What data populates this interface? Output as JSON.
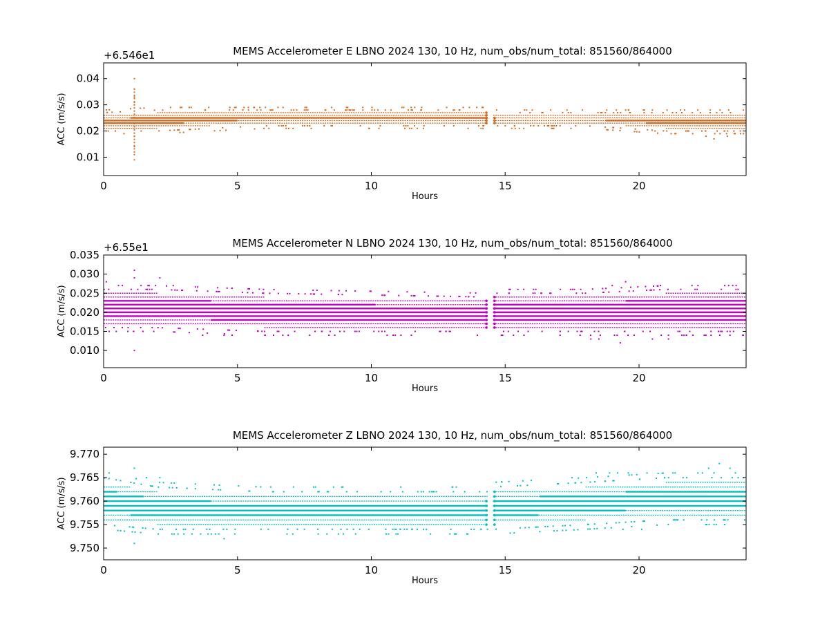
{
  "chart_data": [
    {
      "type": "scatter",
      "title": "MEMS Accelerometer E LBNO 2024 130, 10 Hz, num_obs/num_total: 851560/864000",
      "xlabel": "Hours",
      "ylabel": "ACC (m/s/s)",
      "offset_label": "+6.546e1",
      "color": "#d2691e",
      "xlim": [
        0,
        24
      ],
      "ylim": [
        0.003,
        0.046
      ],
      "xticks": [
        "0",
        "5",
        "10",
        "15",
        "20"
      ],
      "yticks": [
        "0.01",
        "0.02",
        "0.03",
        "0.04"
      ],
      "gaps": [
        [
          14.35,
          14.55
        ]
      ],
      "band": {
        "hours": [
          0,
          2,
          6,
          14.35,
          14.55,
          18,
          21,
          24
        ],
        "lower": [
          0.021,
          0.021,
          0.023,
          0.023,
          0.023,
          0.023,
          0.021,
          0.021
        ],
        "upper": [
          0.026,
          0.027,
          0.027,
          0.027,
          0.026,
          0.026,
          0.026,
          0.026
        ]
      },
      "outliers": [
        [
          1.15,
          0.04
        ],
        [
          1.15,
          0.036
        ],
        [
          1.15,
          0.033
        ],
        [
          1.15,
          0.031
        ],
        [
          1.15,
          0.03
        ],
        [
          1.15,
          0.011
        ],
        [
          1.15,
          0.009
        ],
        [
          1.15,
          0.014
        ],
        [
          1.15,
          0.018
        ],
        [
          2.5,
          0.029
        ],
        [
          3.2,
          0.029
        ],
        [
          3.8,
          0.028
        ],
        [
          4.7,
          0.028
        ],
        [
          5.2,
          0.028
        ],
        [
          9.2,
          0.028
        ],
        [
          11.5,
          0.028
        ],
        [
          12.5,
          0.028
        ],
        [
          13.3,
          0.028
        ],
        [
          15.8,
          0.028
        ],
        [
          16.7,
          0.028
        ],
        [
          19.5,
          0.028
        ],
        [
          20.2,
          0.028
        ],
        [
          20.5,
          0.028
        ],
        [
          21.7,
          0.028
        ],
        [
          22.5,
          0.018
        ],
        [
          22.8,
          0.017
        ],
        [
          23.3,
          0.018
        ],
        [
          23.9,
          0.028
        ],
        [
          21.2,
          0.019
        ],
        [
          20.6,
          0.02
        ]
      ]
    },
    {
      "type": "scatter",
      "title": "MEMS Accelerometer N LBNO 2024 130, 10 Hz, num_obs/num_total: 851560/864000",
      "xlabel": "Hours",
      "ylabel": "ACC (m/s/s)",
      "offset_label": "+6.55e1",
      "color": "#bf00bf",
      "xlim": [
        0,
        24
      ],
      "ylim": [
        0.0055,
        0.035
      ],
      "xticks": [
        "0",
        "5",
        "10",
        "15",
        "20"
      ],
      "yticks": [
        "0.010",
        "0.015",
        "0.020",
        "0.025",
        "0.030",
        "0.035"
      ],
      "gaps": [
        [
          14.35,
          14.55
        ]
      ],
      "band": {
        "hours": [
          0,
          2,
          6,
          14.35,
          14.55,
          18,
          21,
          24
        ],
        "lower": [
          0.017,
          0.017,
          0.016,
          0.016,
          0.016,
          0.016,
          0.016,
          0.016
        ],
        "upper": [
          0.025,
          0.025,
          0.024,
          0.023,
          0.024,
          0.024,
          0.025,
          0.025
        ]
      },
      "outliers": [
        [
          1.15,
          0.031
        ],
        [
          1.15,
          0.029
        ],
        [
          1.15,
          0.01
        ],
        [
          2.1,
          0.029
        ],
        [
          0.1,
          0.028
        ],
        [
          0.7,
          0.027
        ],
        [
          1.7,
          0.027
        ],
        [
          2.6,
          0.027
        ],
        [
          3.7,
          0.014
        ],
        [
          4.5,
          0.014
        ],
        [
          4.8,
          0.014
        ],
        [
          19.0,
          0.027
        ],
        [
          19.5,
          0.028
        ],
        [
          19.3,
          0.012
        ],
        [
          18.2,
          0.013
        ],
        [
          18.5,
          0.013
        ],
        [
          17.8,
          0.014
        ],
        [
          20.5,
          0.013
        ],
        [
          21.1,
          0.013
        ],
        [
          21.6,
          0.014
        ],
        [
          23.2,
          0.027
        ],
        [
          23.5,
          0.027
        ],
        [
          23.7,
          0.026
        ],
        [
          22.5,
          0.014
        ],
        [
          23.4,
          0.015
        ],
        [
          20.8,
          0.027
        ]
      ]
    },
    {
      "type": "scatter",
      "title": "MEMS Accelerometer Z LBNO 2024 130, 10 Hz, num_obs/num_total: 851560/864000",
      "xlabel": "Hours",
      "ylabel": "ACC (m/s/s)",
      "offset_label": "",
      "color": "#00bfbf",
      "xlim": [
        0,
        24
      ],
      "ylim": [
        9.7475,
        9.7715
      ],
      "xticks": [
        "0",
        "5",
        "10",
        "15",
        "20"
      ],
      "yticks": [
        "9.750",
        "9.755",
        "9.760",
        "9.765",
        "9.770"
      ],
      "gaps": [
        [
          14.35,
          14.55
        ]
      ],
      "band": {
        "hours": [
          0,
          2,
          6,
          14.35,
          14.55,
          18,
          21,
          24
        ],
        "lower": [
          9.756,
          9.755,
          9.755,
          9.755,
          9.755,
          9.756,
          9.757,
          9.757
        ],
        "upper": [
          9.764,
          9.762,
          9.761,
          9.761,
          9.762,
          9.763,
          9.764,
          9.764
        ]
      },
      "outliers": [
        [
          1.15,
          9.767
        ],
        [
          1.15,
          9.751
        ],
        [
          0.2,
          9.766
        ],
        [
          1.6,
          9.765
        ],
        [
          2.1,
          9.765
        ],
        [
          3.0,
          9.753
        ],
        [
          3.3,
          9.753
        ],
        [
          3.9,
          9.753
        ],
        [
          4.3,
          9.753
        ],
        [
          4.5,
          9.752
        ],
        [
          4.9,
          9.753
        ],
        [
          4.6,
          9.754
        ],
        [
          18.4,
          9.766
        ],
        [
          18.9,
          9.766
        ],
        [
          19.2,
          9.766
        ],
        [
          19.6,
          9.766
        ],
        [
          20.3,
          9.766
        ],
        [
          19.4,
          9.754
        ],
        [
          20.1,
          9.754
        ],
        [
          22.2,
          9.766
        ],
        [
          22.6,
          9.767
        ],
        [
          22.8,
          9.766
        ],
        [
          23.0,
          9.768
        ],
        [
          23.4,
          9.767
        ],
        [
          23.6,
          9.766
        ],
        [
          23.9,
          9.765
        ],
        [
          22.5,
          9.755
        ],
        [
          17.5,
          9.765
        ]
      ]
    }
  ]
}
